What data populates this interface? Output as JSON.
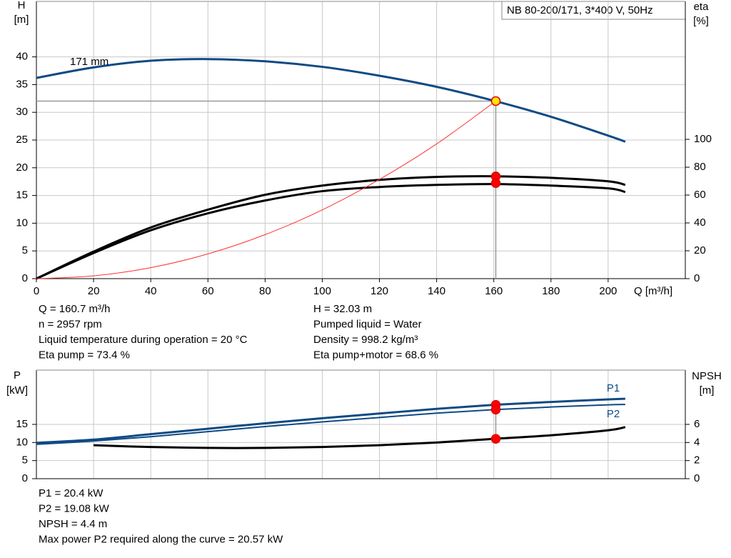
{
  "chart_data": [
    {
      "type": "line",
      "legend_box": "NB 80-200/171, 3*400 V, 50Hz",
      "annotation": "171 mm",
      "x_label": "Q [m³/h]",
      "y_label": "H",
      "y_unit": "[m]",
      "y2_label": "eta",
      "y2_unit": "[%]",
      "xlim": [
        0,
        227
      ],
      "xticks": [
        0,
        20,
        40,
        60,
        80,
        100,
        120,
        140,
        160,
        180,
        200
      ],
      "ylim": [
        0,
        50
      ],
      "yticks": [
        0,
        5,
        10,
        15,
        20,
        25,
        30,
        35,
        40
      ],
      "y2lim": [
        0,
        199
      ],
      "y2ticks": [
        0,
        20,
        40,
        60,
        80,
        100
      ],
      "grid": true,
      "operating_x": 160.7,
      "series": [
        {
          "color": "#0f4a84",
          "line_width": 3,
          "point_color": "#ffe600",
          "x": [
            0,
            20,
            40,
            60,
            80,
            100,
            120,
            140,
            160,
            180,
            200,
            206
          ],
          "values": [
            36.2,
            38.1,
            39.3,
            39.6,
            39.2,
            38.2,
            36.6,
            34.6,
            32.1,
            29.2,
            25.8,
            24.7
          ],
          "point": 32.03
        },
        {
          "color": "#000000",
          "line_width": 3,
          "point_color": "#ff0000",
          "axis": "y2",
          "x": [
            0,
            20,
            40,
            60,
            80,
            100,
            120,
            140,
            160,
            180,
            200,
            206
          ],
          "values": [
            0,
            19.4,
            36.7,
            49.5,
            60.2,
            66.8,
            70.9,
            73,
            73.5,
            72.4,
            69.9,
            67.3
          ],
          "point": 73.4
        },
        {
          "color": "#000000",
          "line_width": 3,
          "point_color": "#ff0000",
          "axis": "y2",
          "x": [
            0,
            20,
            40,
            60,
            80,
            100,
            120,
            140,
            160,
            180,
            200,
            206
          ],
          "values": [
            0,
            18.4,
            34.7,
            46.9,
            56.1,
            62.8,
            65.8,
            67.3,
            67.9,
            66.8,
            64.8,
            62.2
          ],
          "point": 68.6
        },
        {
          "color": "#ff3030",
          "line_width": 1,
          "x": [
            0,
            20,
            40,
            60,
            80,
            100,
            120,
            140,
            160.7
          ],
          "values": [
            0,
            0.5,
            1.98,
            4.46,
            7.94,
            12.4,
            17.9,
            24.3,
            32.03
          ]
        }
      ]
    },
    {
      "type": "line",
      "y_label": "P",
      "y_unit": "[kW]",
      "y2_label": "NPSH",
      "y2_unit": "[m]",
      "xlim": [
        0,
        227
      ],
      "ylim": [
        0,
        30
      ],
      "yticks": [
        0,
        5,
        10,
        15
      ],
      "y2lim": [
        0,
        12
      ],
      "y2ticks": [
        0,
        2,
        4,
        6
      ],
      "grid": true,
      "operating_x": 160.7,
      "series": [
        {
          "name": "P1",
          "color": "#0f4a84",
          "line_width": 3,
          "point_color": "#ff0000",
          "x": [
            0,
            20,
            40,
            60,
            80,
            100,
            120,
            140,
            160,
            180,
            200,
            206
          ],
          "values": [
            9.9,
            10.8,
            12.3,
            13.8,
            15.3,
            16.7,
            18,
            19.3,
            20.4,
            21.2,
            21.9,
            22.1
          ],
          "point": 20.4
        },
        {
          "name": "P2",
          "color": "#0f4a84",
          "line_width": 2,
          "point_color": "#ff0000",
          "x": [
            0,
            20,
            40,
            60,
            80,
            100,
            120,
            140,
            160,
            180,
            200,
            206
          ],
          "values": [
            9.5,
            10.4,
            11.6,
            13,
            14.4,
            15.7,
            16.9,
            18.1,
            19.08,
            19.8,
            20.4,
            20.5
          ],
          "point": 19.08
        },
        {
          "color": "#000000",
          "line_width": 3,
          "point_color": "#ff0000",
          "axis": "y2",
          "x": [
            20,
            40,
            60,
            80,
            100,
            120,
            140,
            160,
            180,
            200,
            206
          ],
          "values": [
            3.7,
            3.5,
            3.4,
            3.4,
            3.5,
            3.7,
            4.0,
            4.4,
            4.8,
            5.35,
            5.7
          ],
          "point": 4.4
        }
      ]
    }
  ],
  "info": {
    "top_left": [
      "Q = 160.7 m³/h",
      "n = 2957 rpm",
      "Liquid temperature during operation = 20 °C",
      "Eta pump = 73.4 %"
    ],
    "top_right": [
      "H = 32.03 m",
      "Pumped liquid = Water",
      "Density = 998.2 kg/m³",
      "Eta pump+motor = 68.6 %"
    ],
    "bottom": [
      "P1 = 20.4 kW",
      "P2 = 19.08 kW",
      "NPSH = 4.4 m",
      "Max power P2 required along the curve = 20.57 kW"
    ]
  }
}
